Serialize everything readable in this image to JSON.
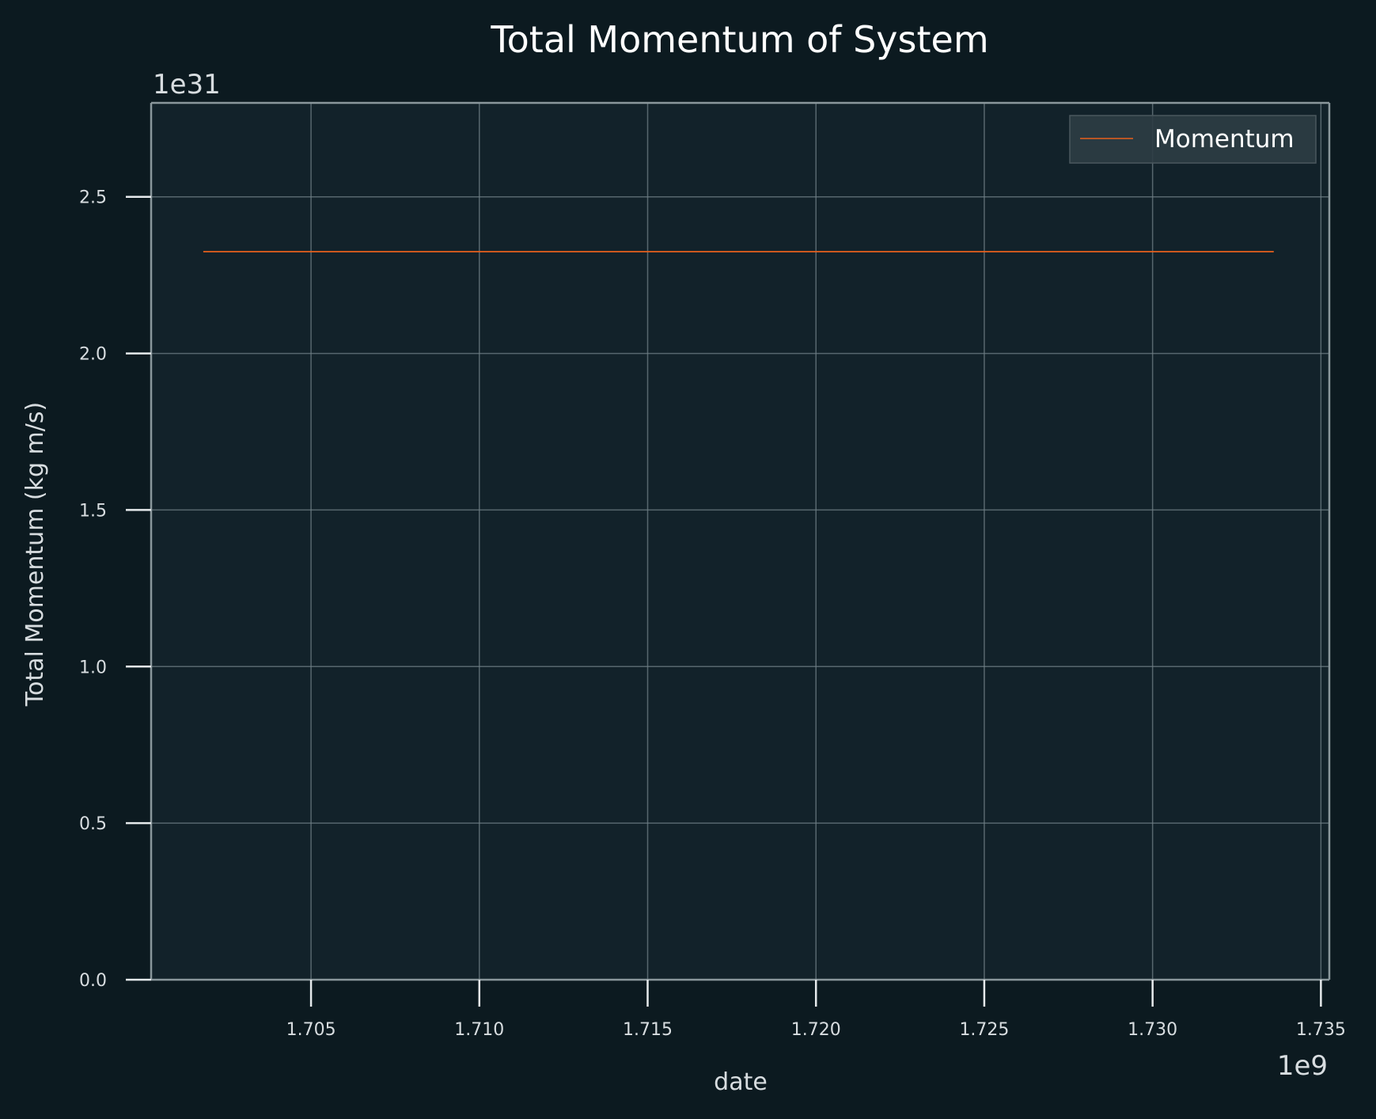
{
  "chart_data": {
    "type": "line",
    "title": "Total Momentum of System",
    "xlabel": "date",
    "ylabel": "Total Momentum (kg m/s)",
    "x_offset_label": "1e9",
    "y_offset_label": "1e31",
    "xlim": [
      1.70025,
      1.73525
    ],
    "ylim": [
      0,
      2.8
    ],
    "x_ticks": [
      1.705,
      1.71,
      1.715,
      1.72,
      1.725,
      1.73,
      1.735
    ],
    "x_tick_labels": [
      "1.705",
      "1.710",
      "1.715",
      "1.720",
      "1.725",
      "1.730",
      "1.735"
    ],
    "y_ticks": [
      0.0,
      0.5,
      1.0,
      1.5,
      2.0,
      2.5
    ],
    "y_tick_labels": [
      "0.0",
      "0.5",
      "1.0",
      "1.5",
      "2.0",
      "2.5"
    ],
    "grid": true,
    "legend_position": "top-right",
    "series": [
      {
        "name": "Momentum",
        "color": "#e8601c",
        "x": [
          1.7018,
          1.705,
          1.71,
          1.715,
          1.72,
          1.725,
          1.73,
          1.7336
        ],
        "y": [
          2.325,
          2.325,
          2.325,
          2.325,
          2.325,
          2.325,
          2.325,
          2.325
        ]
      }
    ]
  },
  "colors": {
    "background": "#0c1a20",
    "plot_area": "#12222a",
    "grid": "#6f7f86",
    "spine": "#8a979c",
    "legend_box": "#2e3d44"
  }
}
